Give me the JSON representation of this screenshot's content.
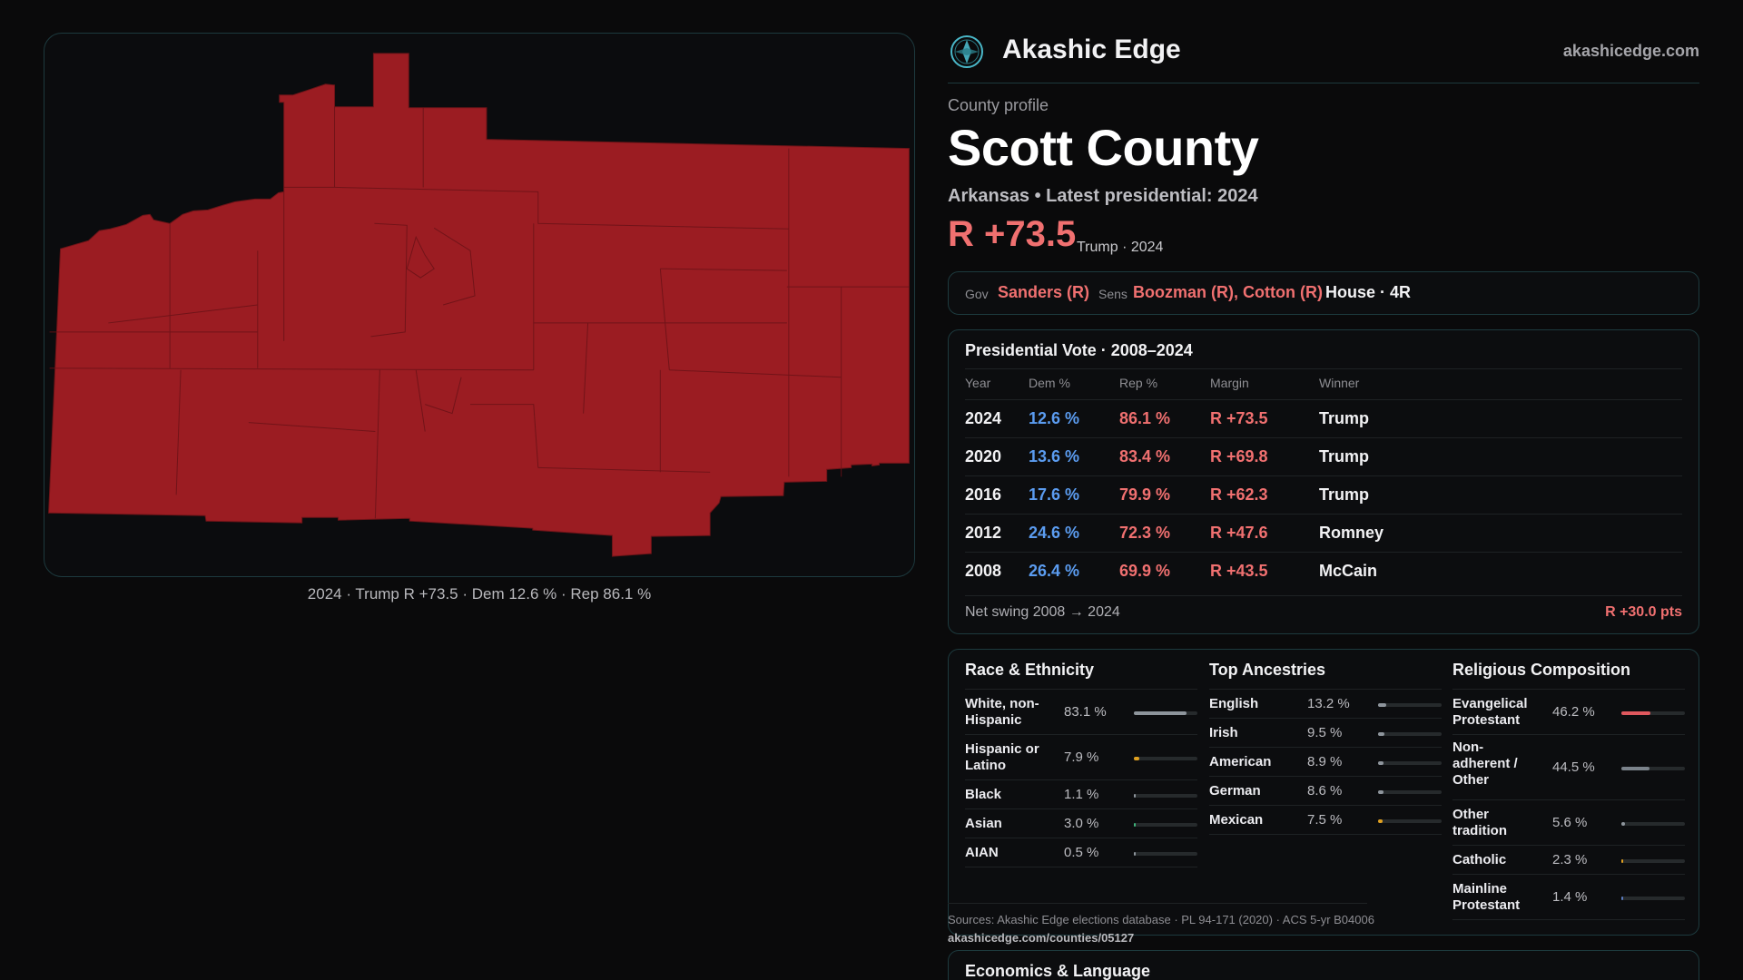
{
  "brand": {
    "name": "Akashic Edge",
    "site": "akashicedge.com",
    "logo_icon": "compass-logo-icon"
  },
  "map": {
    "caption": "2024 · Trump R +73.5 · Dem 12.6 % · Rep 86.1 %",
    "fill_color": "#9b1c22",
    "line_color": "#6e1418"
  },
  "profile": {
    "eyebrow": "County profile",
    "title": "Scott County",
    "subtitle": "Arkansas • Latest presidential: 2024",
    "margin": "R +73.5",
    "margin_note": "Trump · 2024"
  },
  "officials": {
    "gov_label": "Gov",
    "gov_value": "Sanders (R)",
    "sens_label": "Sens",
    "sens_value": "Boozman (R), Cotton (R)",
    "house_value": "House · 4R"
  },
  "votes": {
    "title": "Presidential Vote · 2008–2024",
    "headers": {
      "year": "Year",
      "dem": "Dem %",
      "rep": "Rep %",
      "margin": "Margin",
      "winner": "Winner"
    },
    "rows": [
      {
        "year": "2024",
        "dem": "12.6 %",
        "rep": "86.1 %",
        "margin": "R +73.5",
        "winner": "Trump"
      },
      {
        "year": "2020",
        "dem": "13.6 %",
        "rep": "83.4 %",
        "margin": "R +69.8",
        "winner": "Trump"
      },
      {
        "year": "2016",
        "dem": "17.6 %",
        "rep": "79.9 %",
        "margin": "R +62.3",
        "winner": "Trump"
      },
      {
        "year": "2012",
        "dem": "24.6 %",
        "rep": "72.3 %",
        "margin": "R +47.6",
        "winner": "Romney"
      },
      {
        "year": "2008",
        "dem": "26.4 %",
        "rep": "69.9 %",
        "margin": "R +43.5",
        "winner": "McCain"
      }
    ],
    "swing_label": "Net swing 2008 → 2024",
    "swing_value": "R +30.0 pts"
  },
  "race": {
    "title": "Race & Ethnicity",
    "rows": [
      {
        "name": "White, non-Hispanic",
        "pct": "83.1 %",
        "value": 0.831,
        "color": "#8e959c"
      },
      {
        "name": "Hispanic or Latino",
        "pct": "7.9 %",
        "value": 0.079,
        "color": "#e0a020"
      },
      {
        "name": "Black",
        "pct": "1.1 %",
        "value": 0.011,
        "color": "#8e959c"
      },
      {
        "name": "Asian",
        "pct": "3.0 %",
        "value": 0.03,
        "color": "#3fb37a"
      },
      {
        "name": "AIAN",
        "pct": "0.5 %",
        "value": 0.005,
        "color": "#8e959c"
      }
    ]
  },
  "ancestry": {
    "title": "Top Ancestries",
    "rows": [
      {
        "name": "English",
        "pct": "13.2 %",
        "value": 0.132,
        "color": "#8e959c"
      },
      {
        "name": "Irish",
        "pct": "9.5 %",
        "value": 0.095,
        "color": "#8e959c"
      },
      {
        "name": "American",
        "pct": "8.9 %",
        "value": 0.089,
        "color": "#8e959c"
      },
      {
        "name": "German",
        "pct": "8.6 %",
        "value": 0.086,
        "color": "#8e959c"
      },
      {
        "name": "Mexican",
        "pct": "7.5 %",
        "value": 0.075,
        "color": "#e0a020"
      }
    ]
  },
  "religion": {
    "title": "Religious Composition",
    "rows": [
      {
        "name": "Evangelical Protestant",
        "pct": "46.2 %",
        "value": 0.462,
        "color": "#e0585e"
      },
      {
        "name": "Non-adherent / Other",
        "pct": "44.5 %",
        "value": 0.445,
        "color": "#7b838b"
      },
      {
        "name": "Other tradition",
        "pct": "5.6 %",
        "value": 0.056,
        "color": "#8e959c"
      },
      {
        "name": "Catholic",
        "pct": "2.3 %",
        "value": 0.023,
        "color": "#e0a020"
      },
      {
        "name": "Mainline Protestant",
        "pct": "1.4 %",
        "value": 0.014,
        "color": "#5b7bbf"
      }
    ]
  },
  "sources": {
    "text": "Sources: Akashic Edge elections database · PL 94-171 (2020) · ACS 5-yr B04006",
    "url": "akashicedge.com/counties/05127"
  },
  "econ": {
    "title": "Economics & Language"
  }
}
